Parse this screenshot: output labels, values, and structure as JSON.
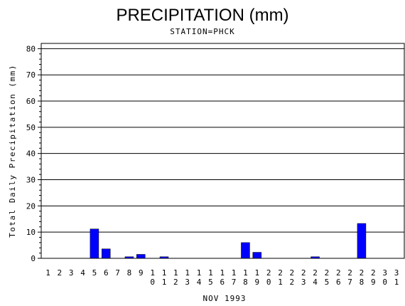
{
  "chart_data": {
    "type": "bar",
    "title": "PRECIPITATION (mm)",
    "subtitle": "STATION=PHCK",
    "xlabel": "NOV 1993",
    "ylabel": "Total Daily Precipitation (mm)",
    "ylim": [
      0,
      82
    ],
    "yticks": [
      "0",
      "10",
      "20",
      "30",
      "40",
      "50",
      "60",
      "70",
      "80"
    ],
    "grid": true,
    "categories": [
      "1",
      "2",
      "3",
      "4",
      "5",
      "6",
      "7",
      "8",
      "9",
      "10",
      "11",
      "12",
      "13",
      "14",
      "15",
      "16",
      "17",
      "18",
      "19",
      "20",
      "21",
      "22",
      "23",
      "24",
      "25",
      "26",
      "27",
      "28",
      "29",
      "30",
      "31"
    ],
    "values": [
      0,
      0,
      0,
      0,
      11.2,
      3.6,
      0,
      0.6,
      1.5,
      0,
      0.6,
      0,
      0,
      0,
      0,
      0,
      0,
      6.0,
      2.3,
      0,
      0,
      0,
      0,
      0.6,
      0,
      0,
      0,
      13.3,
      0,
      0,
      0
    ]
  }
}
